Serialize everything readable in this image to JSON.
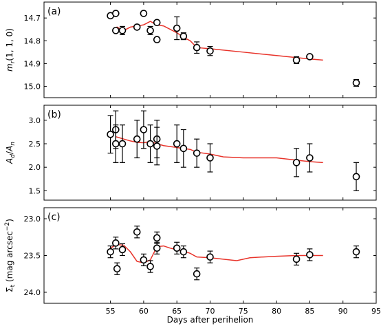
{
  "chart_data": {
    "type": "scatter",
    "shared_x": {
      "label": "Days after perihelion",
      "range": [
        45,
        95
      ],
      "ticks": [
        55,
        60,
        65,
        70,
        75,
        80,
        85,
        90,
        95
      ]
    },
    "colors": {
      "model": "#e8332a",
      "points": "#000000"
    },
    "panels": [
      {
        "tag": "(a)",
        "ylabel": "m_r(1, 1, 0)",
        "ylim": [
          15.05,
          14.63
        ],
        "inverted": true,
        "yticks": [
          "14.7",
          "14.8",
          "14.9",
          "15.0"
        ],
        "yticks_values": [
          14.7,
          14.8,
          14.9,
          15.0
        ],
        "points": [
          {
            "x": 55,
            "y": 14.69,
            "err": 0
          },
          {
            "x": 55.8,
            "y": 14.68,
            "err": 0
          },
          {
            "x": 55.8,
            "y": 14.755,
            "err": 0
          },
          {
            "x": 56.8,
            "y": 14.755,
            "err": 0.018
          },
          {
            "x": 59,
            "y": 14.74,
            "err": 0
          },
          {
            "x": 60,
            "y": 14.68,
            "err": 0
          },
          {
            "x": 61,
            "y": 14.755,
            "err": 0.018
          },
          {
            "x": 62,
            "y": 14.72,
            "err": 0
          },
          {
            "x": 62,
            "y": 14.795,
            "err": 0
          },
          {
            "x": 65,
            "y": 14.745,
            "err": 0.05
          },
          {
            "x": 66,
            "y": 14.78,
            "err": 0.015
          },
          {
            "x": 68,
            "y": 14.83,
            "err": 0.025
          },
          {
            "x": 70,
            "y": 14.845,
            "err": 0.02
          },
          {
            "x": 83,
            "y": 14.885,
            "err": 0.015
          },
          {
            "x": 85,
            "y": 14.87,
            "err": 0
          },
          {
            "x": 92,
            "y": 14.985,
            "err": 0.015
          }
        ],
        "model": {
          "x": [
            55.8,
            56,
            57,
            58,
            59,
            60,
            61,
            62,
            63,
            64,
            65,
            66,
            67,
            68,
            70,
            75,
            80,
            85,
            87
          ],
          "y": [
            14.755,
            14.74,
            14.755,
            14.74,
            14.735,
            14.73,
            14.715,
            14.73,
            14.735,
            14.75,
            14.765,
            14.785,
            14.8,
            14.83,
            14.835,
            14.85,
            14.865,
            14.88,
            14.885
          ]
        }
      },
      {
        "tag": "(b)",
        "ylabel": "A_d/A_n",
        "ylim": [
          1.3,
          3.32
        ],
        "inverted": false,
        "yticks": [
          "1.5",
          "2.0",
          "2.5",
          "3.0"
        ],
        "yticks_values": [
          1.5,
          2.0,
          2.5,
          3.0
        ],
        "points": [
          {
            "x": 55,
            "y": 2.7,
            "err": 0.4
          },
          {
            "x": 55.8,
            "y": 2.8,
            "err": 0.4
          },
          {
            "x": 55.8,
            "y": 2.5,
            "err": 0.4
          },
          {
            "x": 56.8,
            "y": 2.5,
            "err": 0.4
          },
          {
            "x": 59,
            "y": 2.6,
            "err": 0.4
          },
          {
            "x": 60,
            "y": 2.8,
            "err": 0.4
          },
          {
            "x": 61,
            "y": 2.5,
            "err": 0.4
          },
          {
            "x": 62,
            "y": 2.6,
            "err": 0.4
          },
          {
            "x": 62,
            "y": 2.45,
            "err": 0.4
          },
          {
            "x": 65,
            "y": 2.5,
            "err": 0.4
          },
          {
            "x": 66,
            "y": 2.4,
            "err": 0.4
          },
          {
            "x": 68,
            "y": 2.3,
            "err": 0.3
          },
          {
            "x": 70,
            "y": 2.2,
            "err": 0.3
          },
          {
            "x": 83,
            "y": 2.1,
            "err": 0.3
          },
          {
            "x": 85,
            "y": 2.2,
            "err": 0.3
          },
          {
            "x": 92,
            "y": 1.8,
            "err": 0.3
          }
        ],
        "model": {
          "x": [
            55.8,
            57,
            58,
            59,
            60,
            61,
            62,
            63,
            64,
            65,
            66,
            67,
            68,
            70,
            72,
            75,
            80,
            83,
            85,
            87
          ],
          "y": [
            2.65,
            2.6,
            2.56,
            2.53,
            2.52,
            2.55,
            2.5,
            2.46,
            2.44,
            2.42,
            2.4,
            2.38,
            2.32,
            2.28,
            2.22,
            2.2,
            2.2,
            2.15,
            2.12,
            2.1
          ]
        }
      },
      {
        "tag": "(c)",
        "ylabel": "Σ_t (mag arcsec^−2)",
        "ylim": [
          24.15,
          22.85
        ],
        "inverted": true,
        "yticks": [
          "23.0",
          "23.5",
          "24.0"
        ],
        "yticks_values": [
          23.0,
          23.5,
          24.0
        ],
        "points": [
          {
            "x": 55,
            "y": 23.45,
            "err": 0.08
          },
          {
            "x": 55.8,
            "y": 23.33,
            "err": 0.08
          },
          {
            "x": 56,
            "y": 23.68,
            "err": 0.08
          },
          {
            "x": 56.8,
            "y": 23.42,
            "err": 0.08
          },
          {
            "x": 59,
            "y": 23.18,
            "err": 0.08
          },
          {
            "x": 60,
            "y": 23.56,
            "err": 0.08
          },
          {
            "x": 61,
            "y": 23.65,
            "err": 0.08
          },
          {
            "x": 62,
            "y": 23.26,
            "err": 0.08
          },
          {
            "x": 62,
            "y": 23.4,
            "err": 0.08
          },
          {
            "x": 65,
            "y": 23.4,
            "err": 0.08
          },
          {
            "x": 66,
            "y": 23.45,
            "err": 0.08
          },
          {
            "x": 68,
            "y": 23.75,
            "err": 0.08
          },
          {
            "x": 70,
            "y": 23.52,
            "err": 0.08
          },
          {
            "x": 83,
            "y": 23.55,
            "err": 0.08
          },
          {
            "x": 85,
            "y": 23.49,
            "err": 0.08
          },
          {
            "x": 92,
            "y": 23.45,
            "err": 0.08
          }
        ],
        "model": {
          "x": [
            55,
            56,
            57,
            58,
            59,
            60,
            61,
            62,
            63,
            64,
            65,
            66,
            67,
            68,
            70,
            72,
            74,
            76,
            80,
            83,
            85,
            87
          ],
          "y": [
            23.4,
            23.35,
            23.36,
            23.45,
            23.58,
            23.6,
            23.56,
            23.38,
            23.37,
            23.4,
            23.42,
            23.44,
            23.47,
            23.52,
            23.53,
            23.55,
            23.57,
            23.53,
            23.51,
            23.5,
            23.5,
            23.5
          ]
        }
      }
    ]
  }
}
